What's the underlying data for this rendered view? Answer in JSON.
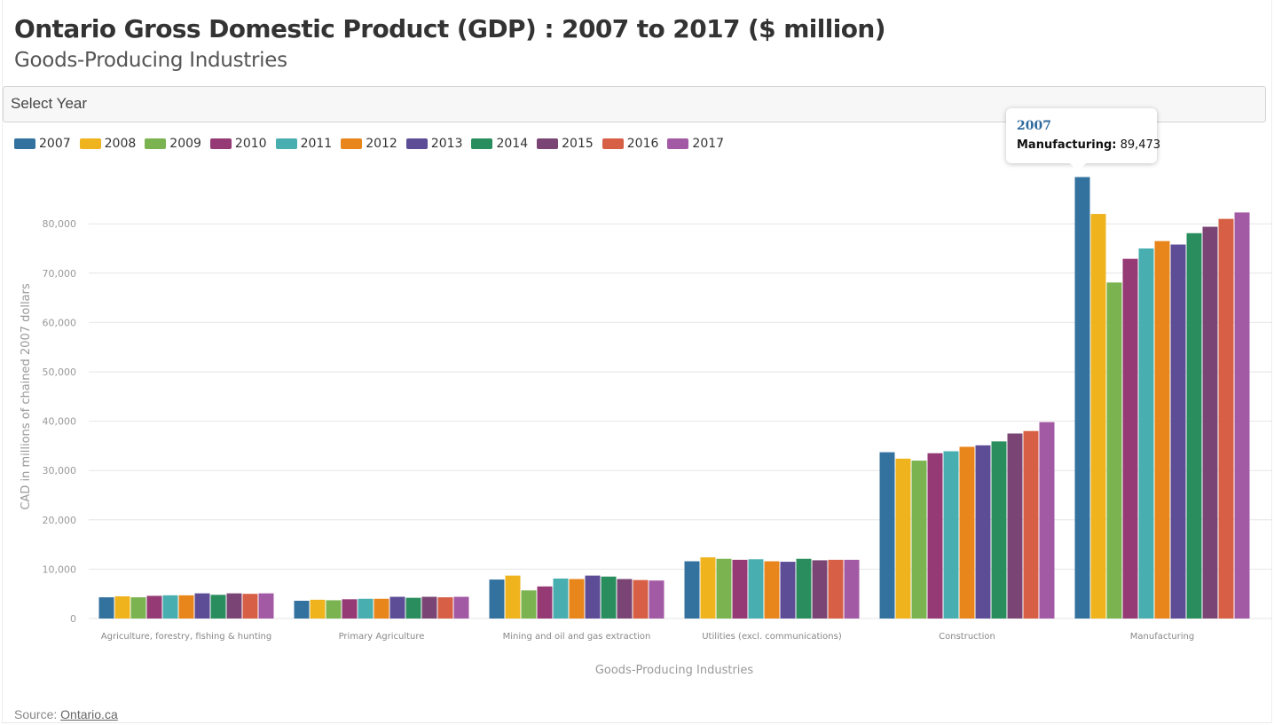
{
  "header": {
    "title": "Ontario Gross Domestic Product (GDP) : 2007 to 2017 ($ million)",
    "subtitle": "Goods-Producing Industries"
  },
  "year_select": {
    "label": "Select Year"
  },
  "tooltip": {
    "year": "2007",
    "category": "Manufacturing:",
    "value": "89,473"
  },
  "source": {
    "label": "Source:",
    "link_text": "Ontario.ca"
  },
  "chart_data": {
    "type": "bar",
    "title": "Ontario Gross Domestic Product (GDP) : 2007 to 2017 ($ million)",
    "subtitle": "Goods-Producing Industries",
    "xlabel": "Goods-Producing Industries",
    "ylabel": "CAD in millions of chained 2007 dollars",
    "ylim": [
      0,
      90000
    ],
    "yticks": [
      0,
      10000,
      20000,
      30000,
      40000,
      50000,
      60000,
      70000,
      80000
    ],
    "ytick_labels": [
      "0",
      "10,000",
      "20,000",
      "30,000",
      "40,000",
      "50,000",
      "60,000",
      "70,000",
      "80,000"
    ],
    "grid": true,
    "legend_position": "top-left",
    "categories": [
      "Agriculture, forestry, fishing & hunting",
      "Primary Agriculture",
      "Mining and oil and gas extraction",
      "Utilities (excl. communications)",
      "Construction",
      "Manufacturing"
    ],
    "series": [
      {
        "name": "2007",
        "color": "#33729f",
        "values": [
          4300,
          3600,
          7900,
          11600,
          33700,
          89473
        ]
      },
      {
        "name": "2008",
        "color": "#efb31e",
        "values": [
          4500,
          3800,
          8700,
          12400,
          32400,
          82000
        ]
      },
      {
        "name": "2009",
        "color": "#7ab34f",
        "values": [
          4300,
          3700,
          5700,
          12100,
          32000,
          68100
        ]
      },
      {
        "name": "2010",
        "color": "#953a74",
        "values": [
          4600,
          3900,
          6500,
          11900,
          33500,
          72900
        ]
      },
      {
        "name": "2011",
        "color": "#48aeaf",
        "values": [
          4700,
          4000,
          8100,
          12000,
          33900,
          75000
        ]
      },
      {
        "name": "2012",
        "color": "#e8861b",
        "values": [
          4700,
          4000,
          8000,
          11600,
          34800,
          76500
        ]
      },
      {
        "name": "2013",
        "color": "#5d4d96",
        "values": [
          5100,
          4400,
          8700,
          11500,
          35100,
          75800
        ]
      },
      {
        "name": "2014",
        "color": "#2a8d5d",
        "values": [
          4800,
          4200,
          8500,
          12100,
          35900,
          78100
        ]
      },
      {
        "name": "2015",
        "color": "#7a4574",
        "values": [
          5100,
          4400,
          8000,
          11800,
          37500,
          79400
        ]
      },
      {
        "name": "2016",
        "color": "#d65f45",
        "values": [
          5000,
          4300,
          7800,
          11900,
          38000,
          81000
        ]
      },
      {
        "name": "2017",
        "color": "#a35aa5",
        "values": [
          5100,
          4400,
          7700,
          11900,
          39800,
          82300
        ]
      }
    ]
  }
}
